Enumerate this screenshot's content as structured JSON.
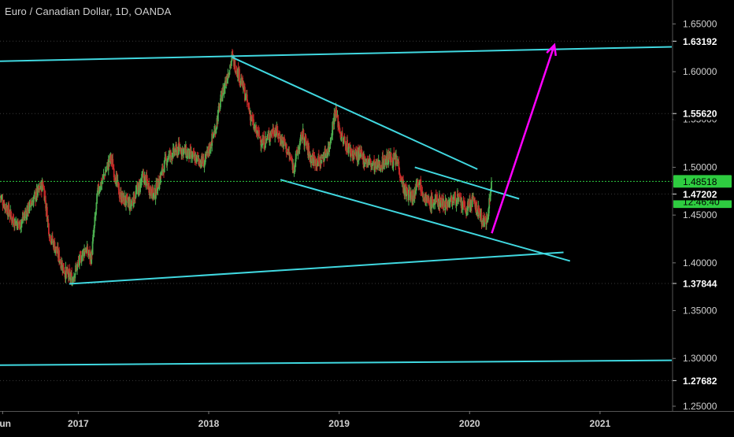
{
  "header": {
    "title": "Euro / Canadian Dollar, 1D, OANDA"
  },
  "colors": {
    "background": "#000000",
    "up": "#4caf50",
    "down": "#c62828",
    "trendline": "#40d8e0",
    "arrow": "#ff00ff",
    "current_price": "#2ecc40",
    "grid_dotted": "#3a3a3a",
    "axis_text": "#d0d0d0"
  },
  "chart_data": {
    "type": "candlestick",
    "title": "Euro / Canadian Dollar, 1D, OANDA",
    "x_ticks": [
      "Jun",
      "2017",
      "2018",
      "2019",
      "2020",
      "2021"
    ],
    "y_ticks": [
      "1.65000",
      "1.60000",
      "1.55000",
      "1.50000",
      "1.45000",
      "1.40000",
      "1.35000",
      "1.30000",
      "1.25000"
    ],
    "ylim": [
      1.245,
      1.675
    ],
    "xlim": [
      2016.4,
      2021.55
    ],
    "price_labels": [
      {
        "value": 1.63192,
        "text": "1.63192",
        "style": "marker"
      },
      {
        "value": 1.5562,
        "text": "1.55620",
        "style": "marker"
      },
      {
        "value": 1.48518,
        "text": "1.48518",
        "style": "current"
      },
      {
        "value": 1.464,
        "text": "12:46:40",
        "style": "countdown"
      },
      {
        "value": 1.47202,
        "text": "1.47202",
        "style": "marker"
      },
      {
        "value": 1.37844,
        "text": "1.37844",
        "style": "marker"
      },
      {
        "value": 1.27682,
        "text": "1.27682",
        "style": "marker"
      }
    ],
    "current_price": 1.48518,
    "path": [
      [
        2016.4,
        1.47
      ],
      [
        2016.5,
        1.445
      ],
      [
        2016.55,
        1.44
      ],
      [
        2016.65,
        1.465
      ],
      [
        2016.73,
        1.483
      ],
      [
        2016.78,
        1.43
      ],
      [
        2016.84,
        1.41
      ],
      [
        2016.9,
        1.39
      ],
      [
        2016.95,
        1.383
      ],
      [
        2017.05,
        1.415
      ],
      [
        2017.1,
        1.405
      ],
      [
        2017.15,
        1.475
      ],
      [
        2017.25,
        1.51
      ],
      [
        2017.32,
        1.47
      ],
      [
        2017.4,
        1.46
      ],
      [
        2017.5,
        1.49
      ],
      [
        2017.58,
        1.47
      ],
      [
        2017.68,
        1.51
      ],
      [
        2017.78,
        1.52
      ],
      [
        2017.88,
        1.51
      ],
      [
        2017.97,
        1.505
      ],
      [
        2018.05,
        1.54
      ],
      [
        2018.1,
        1.575
      ],
      [
        2018.18,
        1.615
      ],
      [
        2018.25,
        1.59
      ],
      [
        2018.35,
        1.54
      ],
      [
        2018.42,
        1.525
      ],
      [
        2018.5,
        1.54
      ],
      [
        2018.58,
        1.525
      ],
      [
        2018.65,
        1.5
      ],
      [
        2018.72,
        1.535
      ],
      [
        2018.78,
        1.51
      ],
      [
        2018.85,
        1.505
      ],
      [
        2018.92,
        1.52
      ],
      [
        2018.97,
        1.56
      ],
      [
        2019.02,
        1.53
      ],
      [
        2019.1,
        1.515
      ],
      [
        2019.18,
        1.51
      ],
      [
        2019.28,
        1.5
      ],
      [
        2019.38,
        1.51
      ],
      [
        2019.45,
        1.505
      ],
      [
        2019.5,
        1.475
      ],
      [
        2019.57,
        1.468
      ],
      [
        2019.6,
        1.49
      ],
      [
        2019.68,
        1.462
      ],
      [
        2019.75,
        1.465
      ],
      [
        2019.82,
        1.462
      ],
      [
        2019.9,
        1.468
      ],
      [
        2019.97,
        1.455
      ],
      [
        2020.02,
        1.465
      ],
      [
        2020.08,
        1.45
      ],
      [
        2020.12,
        1.44
      ],
      [
        2020.15,
        1.462
      ],
      [
        2020.17,
        1.485
      ]
    ],
    "trendlines": [
      {
        "name": "upper-channel",
        "from": [
          2016.4,
          1.611
        ],
        "to": [
          2021.55,
          1.626
        ]
      },
      {
        "name": "lower-channel",
        "from": [
          2016.4,
          1.293
        ],
        "to": [
          2021.55,
          1.298
        ]
      },
      {
        "name": "support-from-2017-low",
        "from": [
          2016.93,
          1.378
        ],
        "to": [
          2020.72,
          1.411
        ]
      },
      {
        "name": "wedge-top",
        "from": [
          2018.18,
          1.615
        ],
        "to": [
          2020.06,
          1.498
        ]
      },
      {
        "name": "wedge-bottom",
        "from": [
          2018.55,
          1.487
        ],
        "to": [
          2020.77,
          1.402
        ]
      },
      {
        "name": "small-channel-top",
        "from": [
          2019.58,
          1.5
        ],
        "to": [
          2020.38,
          1.467
        ]
      }
    ],
    "arrow": {
      "from": [
        2020.17,
        1.431
      ],
      "to": [
        2020.65,
        1.628
      ]
    }
  }
}
